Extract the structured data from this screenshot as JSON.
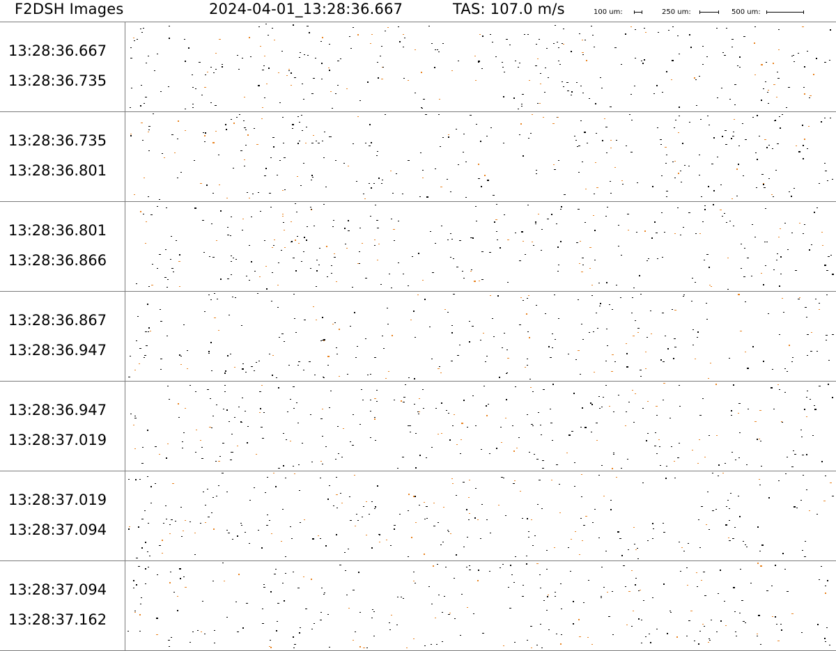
{
  "header": {
    "title": "F2DSH Images",
    "timestamp": "2024-04-01_13:28:36.667",
    "tas": "TAS: 107.0 m/s",
    "scale_bars": [
      {
        "label": "100 um:"
      },
      {
        "label": "250 um:"
      },
      {
        "label": "500 um:"
      }
    ]
  },
  "strips": [
    {
      "start": "13:28:36.667",
      "end": "13:28:36.735"
    },
    {
      "start": "13:28:36.735",
      "end": "13:28:36.801"
    },
    {
      "start": "13:28:36.801",
      "end": "13:28:36.866"
    },
    {
      "start": "13:28:36.867",
      "end": "13:28:36.947"
    },
    {
      "start": "13:28:36.947",
      "end": "13:28:37.019"
    },
    {
      "start": "13:28:37.019",
      "end": "13:28:37.094"
    },
    {
      "start": "13:28:37.094",
      "end": "13:28:37.162"
    }
  ],
  "colors": {
    "particle_dark": "#000000",
    "particle_orange": "#e8821e",
    "divider": "#7a7a7a"
  }
}
